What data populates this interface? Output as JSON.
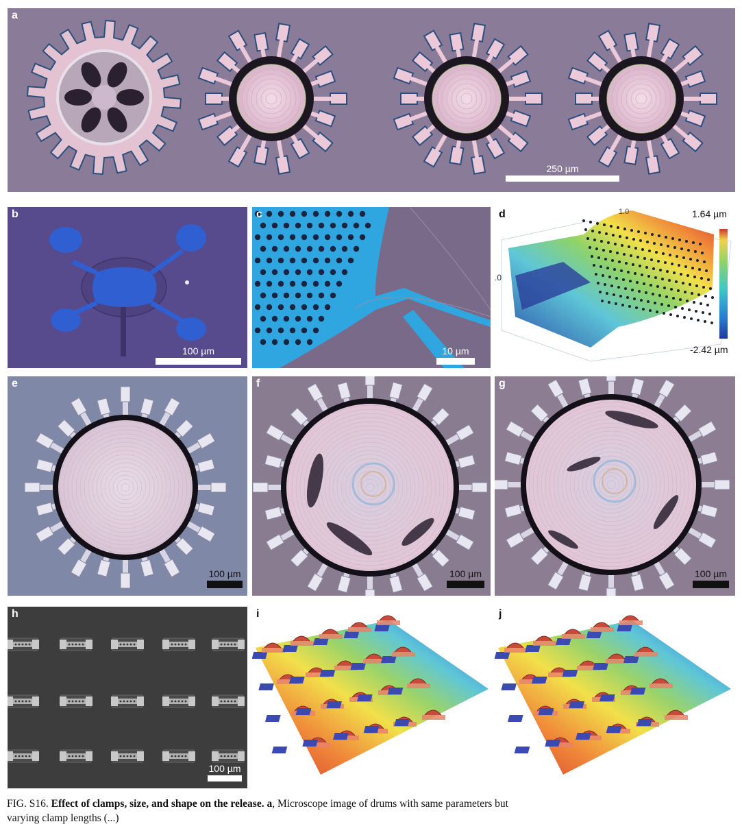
{
  "panels": {
    "a": {
      "label": "a",
      "scale": "250 µm"
    },
    "b": {
      "label": "b",
      "scale": "100 µm"
    },
    "c": {
      "label": "c",
      "scale": "10 µm"
    },
    "d": {
      "label": "d",
      "colorbar_max": "1.64 µm",
      "colorbar_min": "-2.42 µm",
      "tick_left": ".0",
      "tick_top": "1.0"
    },
    "e": {
      "label": "e",
      "scale": "100 µm"
    },
    "f": {
      "label": "f",
      "scale": "100 µm"
    },
    "g": {
      "label": "g",
      "scale": "100 µm"
    },
    "h": {
      "label": "h",
      "scale": "100 µm"
    },
    "i": {
      "label": "i"
    },
    "j": {
      "label": "j"
    }
  },
  "caption": {
    "prefix": "FIG. S16.",
    "title": "Effect of clamps, size, and shape on the release.",
    "panel": "a",
    "text": ", Microscope image of drums with same parameters but",
    "line2": "varying clamp lengths (...)"
  },
  "colors": {
    "micro_bg": "#8b7a98",
    "sem_bg": "#5a4f8c",
    "device_blue": "#2f5fd0",
    "membrane_pink": "#e7c9d8"
  }
}
